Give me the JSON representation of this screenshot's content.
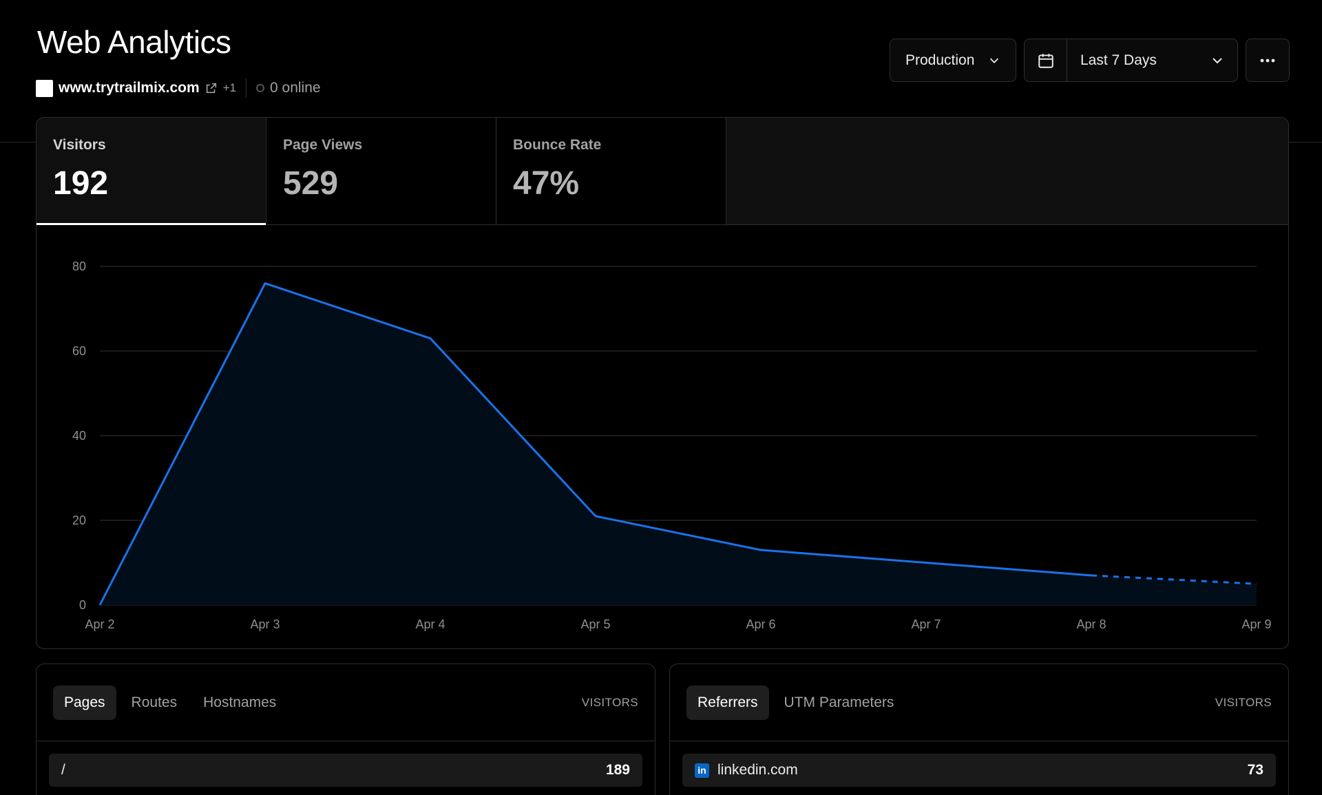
{
  "header": {
    "title": "Web Analytics",
    "site": "www.trytrailmix.com",
    "extra_domains": "+1",
    "online": "0 online"
  },
  "controls": {
    "environment": "Production",
    "date_range": "Last 7 Days"
  },
  "metrics": [
    {
      "label": "Visitors",
      "value": "192",
      "active": true
    },
    {
      "label": "Page Views",
      "value": "529",
      "active": false
    },
    {
      "label": "Bounce Rate",
      "value": "47%",
      "active": false
    }
  ],
  "chart_data": {
    "type": "area",
    "x": [
      "Apr 2",
      "Apr 3",
      "Apr 4",
      "Apr 5",
      "Apr 6",
      "Apr 7",
      "Apr 8",
      "Apr 9"
    ],
    "series": [
      {
        "values": [
          0,
          76,
          63,
          21,
          13,
          10,
          7,
          5
        ]
      }
    ],
    "projected_from_index": 6,
    "ylim": [
      0,
      80
    ],
    "yticks": [
      0,
      20,
      40,
      60,
      80
    ],
    "grid": true,
    "line_color": "#1a73e8",
    "fill_color": "#020d1a"
  },
  "pages_panel": {
    "tabs": [
      "Pages",
      "Routes",
      "Hostnames"
    ],
    "column": "VISITORS",
    "rows": [
      {
        "label": "/",
        "value": "189"
      }
    ]
  },
  "referrers_panel": {
    "tabs": [
      "Referrers",
      "UTM Parameters"
    ],
    "column": "VISITORS",
    "rows": [
      {
        "icon": "linkedin-icon",
        "label": "linkedin.com",
        "value": "73"
      }
    ]
  }
}
